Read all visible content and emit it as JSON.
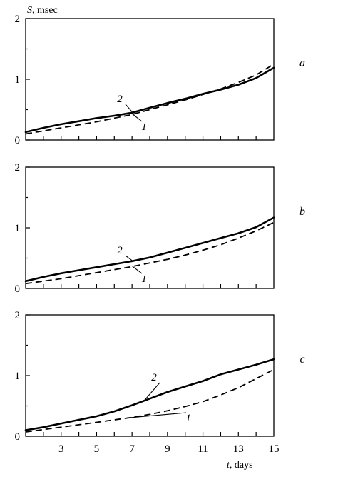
{
  "y_axis_title": {
    "var": "S",
    "unit": ", msec"
  },
  "x_axis_title": {
    "var": "t",
    "unit": ", days"
  },
  "chart_data": [
    {
      "type": "line",
      "panel_label": "a",
      "ylim": [
        0,
        2
      ],
      "xlim": [
        1,
        15
      ],
      "y_ticks": [
        0,
        1,
        2
      ],
      "x_ticks": [
        3,
        5,
        7,
        9,
        11,
        13,
        15
      ],
      "x_tick_labels_shown": false,
      "series": [
        {
          "name": "1",
          "style": "dashed",
          "x": [
            1,
            2,
            3,
            4,
            5,
            6,
            7,
            8,
            9,
            10,
            11,
            12,
            13,
            14,
            15
          ],
          "y": [
            0.1,
            0.15,
            0.2,
            0.25,
            0.3,
            0.36,
            0.42,
            0.5,
            0.58,
            0.66,
            0.75,
            0.84,
            0.95,
            1.07,
            1.25
          ]
        },
        {
          "name": "2",
          "style": "solid",
          "x": [
            1,
            2,
            3,
            4,
            5,
            6,
            7,
            8,
            9,
            10,
            11,
            12,
            13,
            14,
            15
          ],
          "y": [
            0.13,
            0.2,
            0.26,
            0.31,
            0.36,
            0.4,
            0.45,
            0.53,
            0.61,
            0.68,
            0.76,
            0.83,
            0.91,
            1.02,
            1.19
          ]
        }
      ]
    },
    {
      "type": "line",
      "panel_label": "b",
      "ylim": [
        0,
        2
      ],
      "xlim": [
        1,
        15
      ],
      "y_ticks": [
        0,
        1,
        2
      ],
      "x_ticks": [
        3,
        5,
        7,
        9,
        11,
        13,
        15
      ],
      "x_tick_labels_shown": false,
      "series": [
        {
          "name": "1",
          "style": "dashed",
          "x": [
            1,
            2,
            3,
            4,
            5,
            6,
            7,
            8,
            9,
            10,
            11,
            12,
            13,
            14,
            15
          ],
          "y": [
            0.08,
            0.12,
            0.16,
            0.21,
            0.26,
            0.31,
            0.36,
            0.42,
            0.48,
            0.55,
            0.63,
            0.72,
            0.83,
            0.95,
            1.09
          ]
        },
        {
          "name": "2",
          "style": "solid",
          "x": [
            1,
            2,
            3,
            4,
            5,
            6,
            7,
            8,
            9,
            10,
            11,
            12,
            13,
            14,
            15
          ],
          "y": [
            0.12,
            0.19,
            0.25,
            0.3,
            0.35,
            0.4,
            0.45,
            0.51,
            0.59,
            0.67,
            0.75,
            0.83,
            0.91,
            1.01,
            1.17
          ]
        }
      ]
    },
    {
      "type": "line",
      "panel_label": "c",
      "ylim": [
        0,
        2
      ],
      "xlim": [
        1,
        15
      ],
      "y_ticks": [
        0,
        1,
        2
      ],
      "x_ticks": [
        3,
        5,
        7,
        9,
        11,
        13,
        15
      ],
      "x_tick_labels_shown": true,
      "series": [
        {
          "name": "1",
          "style": "dashed",
          "x": [
            1,
            2,
            3,
            4,
            5,
            6,
            7,
            8,
            9,
            10,
            11,
            12,
            13,
            14,
            15
          ],
          "y": [
            0.07,
            0.11,
            0.15,
            0.19,
            0.23,
            0.27,
            0.31,
            0.36,
            0.42,
            0.49,
            0.57,
            0.68,
            0.8,
            0.95,
            1.1
          ]
        },
        {
          "name": "2",
          "style": "solid",
          "x": [
            1,
            2,
            3,
            4,
            5,
            6,
            7,
            8,
            9,
            10,
            11,
            12,
            13,
            14,
            15
          ],
          "y": [
            0.1,
            0.15,
            0.21,
            0.27,
            0.33,
            0.41,
            0.51,
            0.62,
            0.73,
            0.82,
            0.91,
            1.02,
            1.1,
            1.18,
            1.27
          ]
        }
      ]
    }
  ]
}
